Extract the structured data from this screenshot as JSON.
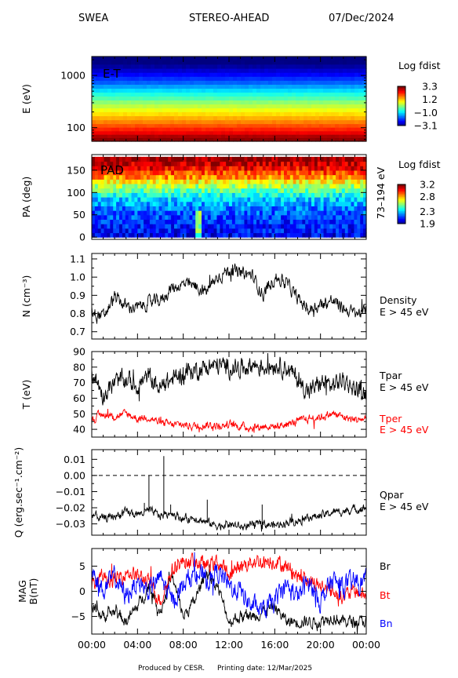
{
  "header": {
    "instrument": "SWEA",
    "spacecraft": "STEREO-AHEAD",
    "date": "07/Dec/2024"
  },
  "footer": {
    "produced_by": "Produced by CESR.",
    "printing_date": "Printing date: 12/Mar/2025"
  },
  "colors": {
    "black_series": "#000000",
    "red_series": "#ff0000",
    "blue_series": "#0000ff"
  },
  "chart_data": [
    {
      "type": "heatmap",
      "panel": "energy_time_spectrogram",
      "tag": "E-T",
      "ylabel": "E (eV)",
      "yscale": "log",
      "ylim": [
        55,
        2300
      ],
      "yticks": [
        "100",
        "1000"
      ],
      "yticks_values": [
        100,
        1000
      ],
      "colorbar": {
        "title": "Log fdist",
        "ticks": [
          "3.3",
          "1.2",
          "−1.0",
          "−3.1"
        ],
        "tick_values": [
          3.3,
          1.2,
          -1.0,
          -3.1
        ],
        "range": [
          -3.1,
          3.3
        ]
      },
      "energy_bands": [
        {
          "e": 60,
          "v": 3.2
        },
        {
          "e": 70,
          "v": 3.0
        },
        {
          "e": 80,
          "v": 2.6
        },
        {
          "e": 95,
          "v": 2.3
        },
        {
          "e": 110,
          "v": 2.0
        },
        {
          "e": 130,
          "v": 1.7
        },
        {
          "e": 155,
          "v": 1.4
        },
        {
          "e": 185,
          "v": 1.1
        },
        {
          "e": 220,
          "v": 0.8
        },
        {
          "e": 260,
          "v": 0.5
        },
        {
          "e": 310,
          "v": 0.2
        },
        {
          "e": 370,
          "v": -0.2
        },
        {
          "e": 440,
          "v": -0.5
        },
        {
          "e": 520,
          "v": -0.9
        },
        {
          "e": 620,
          "v": -1.3
        },
        {
          "e": 740,
          "v": -1.7
        },
        {
          "e": 880,
          "v": -2.0
        },
        {
          "e": 1050,
          "v": -2.3
        },
        {
          "e": 1250,
          "v": -2.6
        },
        {
          "e": 1500,
          "v": -2.9
        },
        {
          "e": 1800,
          "v": -3.1
        },
        {
          "e": 2150,
          "v": -3.1
        }
      ]
    },
    {
      "type": "heatmap",
      "panel": "pitch_angle_distribution",
      "tag": "PAD",
      "ylabel": "PA (deg)",
      "right_label": "73–194 eV",
      "ylim": [
        -5,
        185
      ],
      "yticks": [
        "0",
        "50",
        "100",
        "150"
      ],
      "yticks_values": [
        0,
        50,
        100,
        150
      ],
      "colorbar": {
        "title": "Log fdist",
        "ticks": [
          "3.2",
          "2.8",
          "2.3",
          "1.9"
        ],
        "tick_values": [
          3.2,
          2.8,
          2.3,
          1.9
        ],
        "range": [
          1.9,
          3.2
        ]
      },
      "pa_profile": [
        {
          "pa": 5,
          "v": 2.05
        },
        {
          "pa": 15,
          "v": 2.08
        },
        {
          "pa": 25,
          "v": 2.1
        },
        {
          "pa": 35,
          "v": 2.12
        },
        {
          "pa": 45,
          "v": 2.15
        },
        {
          "pa": 55,
          "v": 2.18
        },
        {
          "pa": 65,
          "v": 2.22
        },
        {
          "pa": 75,
          "v": 2.27
        },
        {
          "pa": 85,
          "v": 2.32
        },
        {
          "pa": 95,
          "v": 2.4
        },
        {
          "pa": 105,
          "v": 2.5
        },
        {
          "pa": 115,
          "v": 2.6
        },
        {
          "pa": 125,
          "v": 2.72
        },
        {
          "pa": 135,
          "v": 2.85
        },
        {
          "pa": 145,
          "v": 2.95
        },
        {
          "pa": 155,
          "v": 3.05
        },
        {
          "pa": 165,
          "v": 3.12
        },
        {
          "pa": 175,
          "v": 3.18
        }
      ]
    },
    {
      "type": "line",
      "panel": "density",
      "ylabel": "N (cm⁻³)",
      "ylim": [
        0.66,
        1.13
      ],
      "yticks": [
        "0.7",
        "0.8",
        "0.9",
        "1.0",
        "1.1"
      ],
      "yticks_values": [
        0.7,
        0.8,
        0.9,
        1.0,
        1.1
      ],
      "series": [
        {
          "name": "Density E > 45 eV",
          "color": "#000000",
          "noise": 0.035,
          "x": [
            0,
            1,
            2,
            3,
            4,
            5,
            6,
            7,
            8,
            9,
            10,
            11,
            12,
            13,
            14,
            15,
            16,
            17,
            18,
            19,
            20,
            21,
            22,
            23,
            24
          ],
          "y": [
            0.82,
            0.78,
            0.89,
            0.84,
            0.83,
            0.86,
            0.87,
            0.94,
            0.96,
            0.95,
            0.92,
            1.0,
            1.04,
            1.02,
            1.01,
            0.9,
            1.0,
            0.97,
            0.88,
            0.82,
            0.85,
            0.87,
            0.83,
            0.8,
            0.81
          ]
        }
      ]
    },
    {
      "type": "line",
      "panel": "temperature",
      "ylabel": "T (eV)",
      "ylim": [
        35,
        90
      ],
      "yticks": [
        "40",
        "50",
        "60",
        "70",
        "80",
        "90"
      ],
      "yticks_values": [
        40,
        50,
        60,
        70,
        80,
        90
      ],
      "series": [
        {
          "name": "Tpar E > 45 eV",
          "color": "#000000",
          "noise": 6,
          "x": [
            0,
            1,
            2,
            3,
            4,
            5,
            6,
            7,
            8,
            9,
            10,
            11,
            12,
            13,
            14,
            15,
            16,
            17,
            18,
            19,
            20,
            21,
            22,
            23,
            24
          ],
          "y": [
            78,
            62,
            70,
            72,
            68,
            74,
            66,
            72,
            76,
            78,
            80,
            81,
            80,
            79,
            82,
            80,
            82,
            80,
            72,
            64,
            70,
            68,
            72,
            66,
            64
          ]
        },
        {
          "name": "Tper E > 45 eV",
          "color": "#ff0000",
          "noise": 2.5,
          "x": [
            0,
            1,
            2,
            3,
            4,
            5,
            6,
            7,
            8,
            9,
            10,
            11,
            12,
            13,
            14,
            15,
            16,
            17,
            18,
            19,
            20,
            21,
            22,
            23,
            24
          ],
          "y": [
            46,
            50,
            48,
            50,
            47,
            48,
            44,
            43,
            43,
            42,
            43,
            42,
            43,
            42,
            41,
            42,
            42,
            43,
            45,
            47,
            48,
            50,
            48,
            46,
            47
          ]
        }
      ]
    },
    {
      "type": "line",
      "panel": "heat_flux",
      "ylabel": "Q (erg.sec⁻¹.cm⁻²)",
      "ylim": [
        -0.037,
        0.016
      ],
      "yticks": [
        "−0.03",
        "−0.02",
        "−0.01",
        "0.00",
        "0.01"
      ],
      "yticks_values": [
        -0.03,
        -0.02,
        -0.01,
        0.0,
        0.01
      ],
      "zero_line": true,
      "series": [
        {
          "name": "Qpar E > 45 eV",
          "color": "#000000",
          "noise": 0.0025,
          "x": [
            0,
            1,
            2,
            3,
            4,
            5,
            6,
            7,
            8,
            9,
            10,
            11,
            12,
            13,
            14,
            15,
            16,
            17,
            18,
            19,
            20,
            21,
            22,
            23,
            24
          ],
          "y": [
            -0.024,
            -0.027,
            -0.025,
            -0.023,
            -0.024,
            -0.022,
            -0.025,
            -0.023,
            -0.027,
            -0.026,
            -0.029,
            -0.031,
            -0.03,
            -0.032,
            -0.031,
            -0.03,
            -0.031,
            -0.029,
            -0.028,
            -0.026,
            -0.025,
            -0.023,
            -0.022,
            -0.021,
            -0.02
          ]
        }
      ],
      "spikes": [
        {
          "x": 6.3,
          "y": 0.012
        },
        {
          "x": 5.0,
          "y": 0.0
        },
        {
          "x": 4.6,
          "y": -0.017
        },
        {
          "x": 6.9,
          "y": -0.018
        },
        {
          "x": 14.9,
          "y": -0.018
        },
        {
          "x": 10.1,
          "y": -0.015
        }
      ]
    },
    {
      "type": "line",
      "panel": "magnetic_field",
      "ylabel": "MAG B(nT)",
      "ylim": [
        -8.5,
        8.5
      ],
      "yticks": [
        "−5",
        "0",
        "5"
      ],
      "yticks_values": [
        -5,
        0,
        5
      ],
      "series": [
        {
          "name": "Br",
          "color": "#000000",
          "noise": 1.2,
          "x": [
            0,
            1,
            2,
            3,
            4,
            5,
            6,
            7,
            8,
            9,
            10,
            11,
            12,
            13,
            14,
            15,
            16,
            17,
            18,
            19,
            20,
            21,
            22,
            23,
            24
          ],
          "y": [
            -3,
            -5,
            -4,
            -6,
            -3,
            1,
            -4,
            3,
            -5,
            -2,
            4,
            1,
            -6,
            -5,
            -5,
            -4,
            -3,
            -6,
            -6,
            -6,
            -6,
            -5,
            -6,
            -6,
            -6
          ]
        },
        {
          "name": "Bt",
          "color": "#ff0000",
          "noise": 1.5,
          "x": [
            0,
            1,
            2,
            3,
            4,
            5,
            6,
            7,
            8,
            9,
            10,
            11,
            12,
            13,
            14,
            15,
            16,
            17,
            18,
            19,
            20,
            21,
            22,
            23,
            24
          ],
          "y": [
            1,
            3,
            2,
            4,
            3,
            2,
            -2,
            4,
            6,
            6,
            5,
            6,
            3,
            5,
            6,
            6,
            6,
            5,
            3,
            2,
            1,
            0,
            -1,
            0,
            -1
          ]
        },
        {
          "name": "Bn",
          "color": "#0000ff",
          "noise": 2.0,
          "x": [
            0,
            1,
            2,
            3,
            4,
            5,
            6,
            7,
            8,
            9,
            10,
            11,
            12,
            13,
            14,
            15,
            16,
            17,
            18,
            19,
            20,
            21,
            22,
            23,
            24
          ],
          "y": [
            4,
            0,
            3,
            -1,
            2,
            0,
            3,
            -2,
            1,
            4,
            2,
            4,
            1,
            0,
            -3,
            -4,
            -2,
            1,
            -1,
            2,
            -2,
            2,
            1,
            2,
            2
          ]
        }
      ]
    }
  ],
  "x_axis": {
    "ticks": [
      "00:00",
      "04:00",
      "08:00",
      "12:00",
      "16:00",
      "20:00",
      "00:00"
    ],
    "tick_values": [
      0,
      4,
      8,
      12,
      16,
      20,
      24
    ],
    "xlim": [
      0,
      24
    ]
  }
}
